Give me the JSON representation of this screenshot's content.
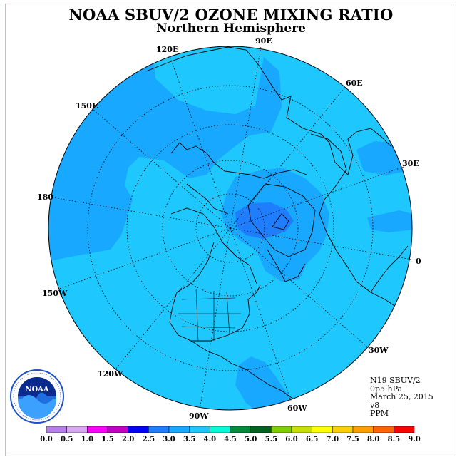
{
  "title": "NOAA SBUV/2 OZONE MIXING RATIO",
  "subtitle": "Northern Hemisphere",
  "longitude_labels": [
    "90E",
    "60E",
    "30E",
    "0",
    "30W",
    "60W",
    "90W",
    "120W",
    "150W",
    "180",
    "150E",
    "120E"
  ],
  "info": {
    "satellite": "N19 SBUV/2",
    "level": "0p5 hPa",
    "date": "March 25, 2015",
    "version": "v8",
    "units": "PPM"
  },
  "colorbar": {
    "ticks": [
      "0.0",
      "0.5",
      "1.0",
      "1.5",
      "2.0",
      "2.5",
      "3.0",
      "3.5",
      "4.0",
      "4.5",
      "5.0",
      "5.5",
      "6.0",
      "6.5",
      "7.0",
      "7.5",
      "8.0",
      "8.5",
      "9.0"
    ],
    "colors": [
      "#b57ee8",
      "#d8a8f0",
      "#ff00ff",
      "#c400c4",
      "#0000ff",
      "#1e7eff",
      "#18a8ff",
      "#1ec8ff",
      "#00ffd8",
      "#008c3c",
      "#006420",
      "#80d000",
      "#c8e000",
      "#ffff00",
      "#ffd000",
      "#ffa000",
      "#ff6400",
      "#ff0000",
      "#8c5a3c"
    ]
  },
  "field_colors": {
    "range_3p0_3p5": "#1ec8ff",
    "range_2p5_3p0": "#18a8ff",
    "range_2p0_2p5": "#1e7eff"
  },
  "logo": {
    "text": "NOAA"
  }
}
